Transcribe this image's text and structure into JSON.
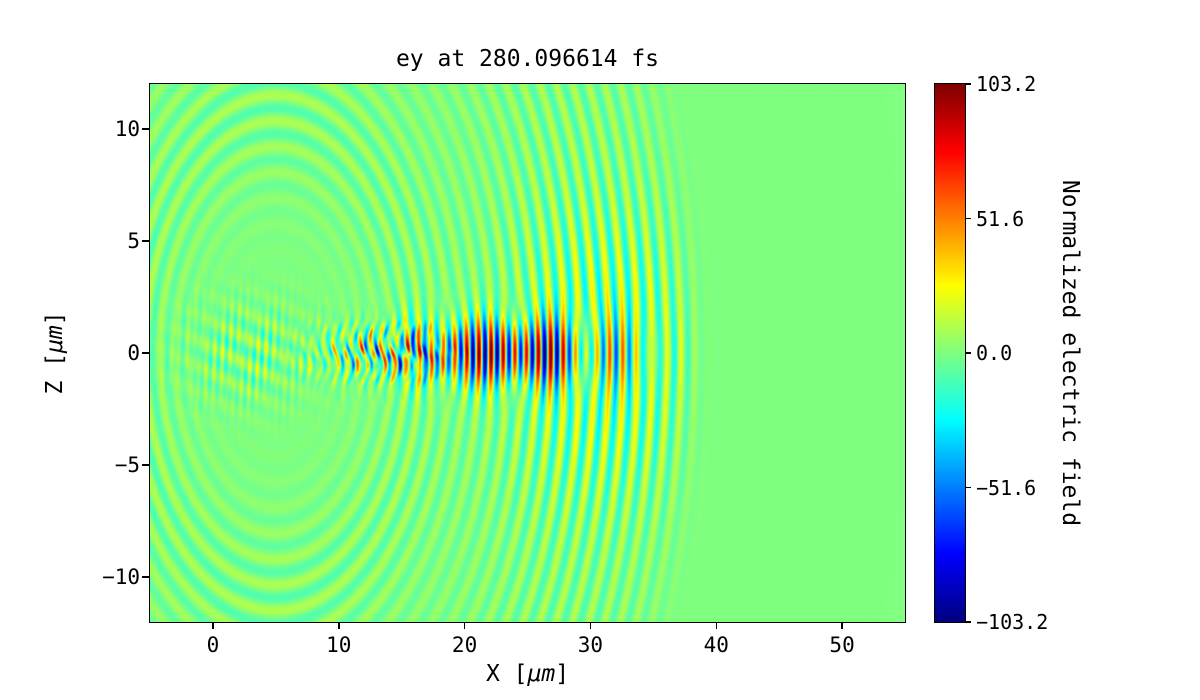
{
  "figure": {
    "title": "ey at 280.096614 fs",
    "xlabel_prefix": "X [",
    "xlabel_unit": "μm",
    "xlabel_suffix": "]",
    "ylabel_prefix": "Z [",
    "ylabel_unit": "μm",
    "ylabel_suffix": "]",
    "colorbar_label": "Normalized electric field"
  },
  "colors": {
    "background": "#ffffff",
    "frame": "#000000",
    "zero_field_green": "#7dff7a"
  },
  "chart_data": {
    "type": "heatmap",
    "title": "ey at 280.096614 fs",
    "xlabel": "X [μm]",
    "ylabel": "Z [μm]",
    "xlim": [
      -5,
      55
    ],
    "ylim": [
      -12,
      12
    ],
    "grid": false,
    "x_axis": {
      "values": [
        0,
        10,
        20,
        30,
        40,
        50
      ],
      "labels": [
        "0",
        "10",
        "20",
        "30",
        "40",
        "50"
      ]
    },
    "y_axis": {
      "values": [
        10,
        5,
        0,
        -5,
        -10
      ],
      "labels": [
        "10",
        "5",
        "0",
        "−5",
        "−10"
      ]
    },
    "colorbar": {
      "label": "Normalized electric field",
      "colormap": "jet",
      "vmin": -103.2,
      "vmax": 103.2,
      "ticks": {
        "values": [
          103.2,
          51.6,
          0.0,
          -51.6,
          -103.2
        ],
        "labels": [
          "103.2",
          "51.6",
          "0.0",
          "−51.6",
          "−103.2"
        ]
      }
    },
    "field_model": {
      "description": "Laser/wakefield ey map: strong oscillating pulse on axis near z=0 between x≈8 and x≈32 (peaks near ±103), curved bow-shaped wavefront arcs expanding toward x≈38 and |z|≈12, weak speckle near x≈-2..8, uniform near-zero (green) field elsewhere.",
      "source_center": [
        5,
        0
      ],
      "leading_edge_radius": 33,
      "wake": {
        "amplitude": 34,
        "radial_center": 26,
        "radial_width": 9,
        "z_width": 6.5,
        "wavelength": 1.15
      },
      "core": {
        "amplitude": 100,
        "x_center": 23,
        "x_width": 8.5,
        "z_width": 1.5,
        "wavelength": 0.95
      },
      "mid": {
        "amplitude": 85,
        "x_center": 13,
        "x_width": 4.5,
        "z_width": 1.2,
        "wavelength": 0.75
      },
      "speckle": {
        "amplitude": 22,
        "x_center": 3,
        "x_width": 5,
        "z_width": 2.2
      },
      "left_rings": {
        "amplitude": 9,
        "radial_center": 11,
        "radial_width": 4,
        "wavelength": 1.15
      }
    }
  }
}
